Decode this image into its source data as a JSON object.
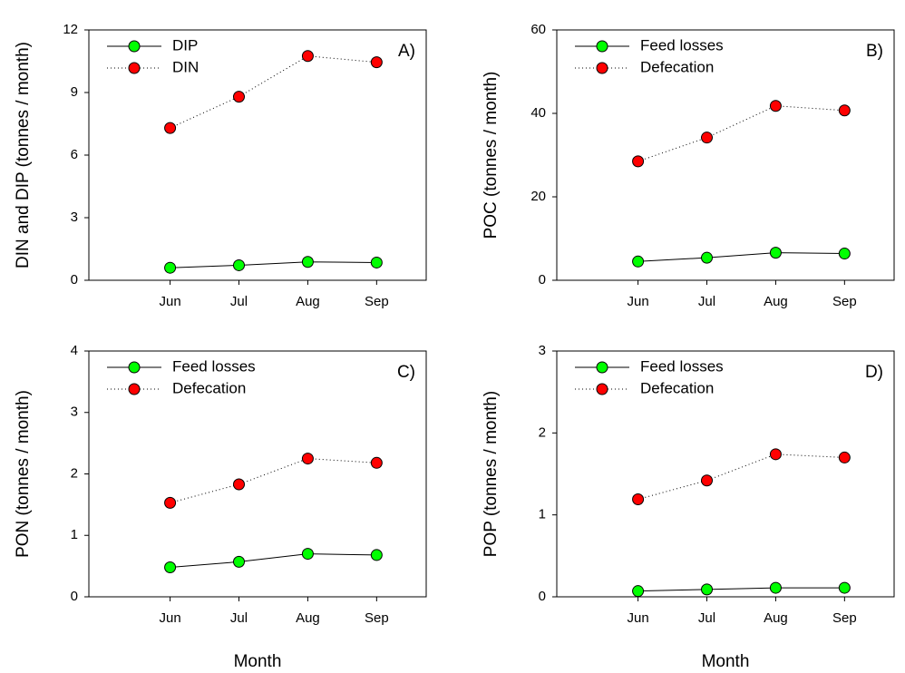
{
  "chart_data": [
    {
      "type": "line",
      "y_label": "DIN and DIP (tonnes / month)",
      "annotation": "A)",
      "categories": [
        "Jun",
        "Jul",
        "Aug",
        "Sep"
      ],
      "ylim": [
        0,
        12
      ],
      "yticks": [
        0,
        3,
        6,
        9,
        12
      ],
      "legend": "upper left",
      "series": [
        {
          "name": "DIP",
          "color": "#00ff00",
          "line_style": "solid",
          "values": [
            0.6,
            0.72,
            0.88,
            0.85
          ]
        },
        {
          "name": "DIN",
          "color": "#ff0000",
          "line_style": "dotted",
          "values": [
            7.3,
            8.8,
            10.75,
            10.45
          ]
        }
      ]
    },
    {
      "type": "line",
      "y_label": "POC (tonnes / month)",
      "annotation": "B)",
      "categories": [
        "Jun",
        "Jul",
        "Aug",
        "Sep"
      ],
      "ylim": [
        0,
        60
      ],
      "yticks": [
        0,
        20,
        40,
        60
      ],
      "legend": "upper left",
      "series": [
        {
          "name": "Feed losses",
          "color": "#00ff00",
          "line_style": "solid",
          "values": [
            4.5,
            5.4,
            6.6,
            6.4
          ]
        },
        {
          "name": "Defecation",
          "color": "#ff0000",
          "line_style": "dotted",
          "values": [
            28.5,
            34.2,
            41.8,
            40.7
          ]
        }
      ]
    },
    {
      "type": "line",
      "y_label": "PON (tonnes / month)",
      "x_label": "Month",
      "annotation": "C)",
      "categories": [
        "Jun",
        "Jul",
        "Aug",
        "Sep"
      ],
      "ylim": [
        0,
        4
      ],
      "yticks": [
        0,
        1,
        2,
        3,
        4
      ],
      "legend": "upper left",
      "series": [
        {
          "name": "Feed losses",
          "color": "#00ff00",
          "line_style": "solid",
          "values": [
            0.48,
            0.57,
            0.7,
            0.68
          ]
        },
        {
          "name": "Defecation",
          "color": "#ff0000",
          "line_style": "dotted",
          "values": [
            1.53,
            1.83,
            2.25,
            2.18
          ]
        }
      ]
    },
    {
      "type": "line",
      "y_label": "POP (tonnes / month)",
      "x_label": "Month",
      "annotation": "D)",
      "categories": [
        "Jun",
        "Jul",
        "Aug",
        "Sep"
      ],
      "ylim": [
        0,
        3
      ],
      "yticks": [
        0,
        1,
        2,
        3
      ],
      "legend": "upper left",
      "series": [
        {
          "name": "Feed losses",
          "color": "#00ff00",
          "line_style": "solid",
          "values": [
            0.07,
            0.09,
            0.11,
            0.11
          ]
        },
        {
          "name": "Defecation",
          "color": "#ff0000",
          "line_style": "dotted",
          "values": [
            1.19,
            1.42,
            1.74,
            1.7
          ]
        }
      ]
    }
  ]
}
